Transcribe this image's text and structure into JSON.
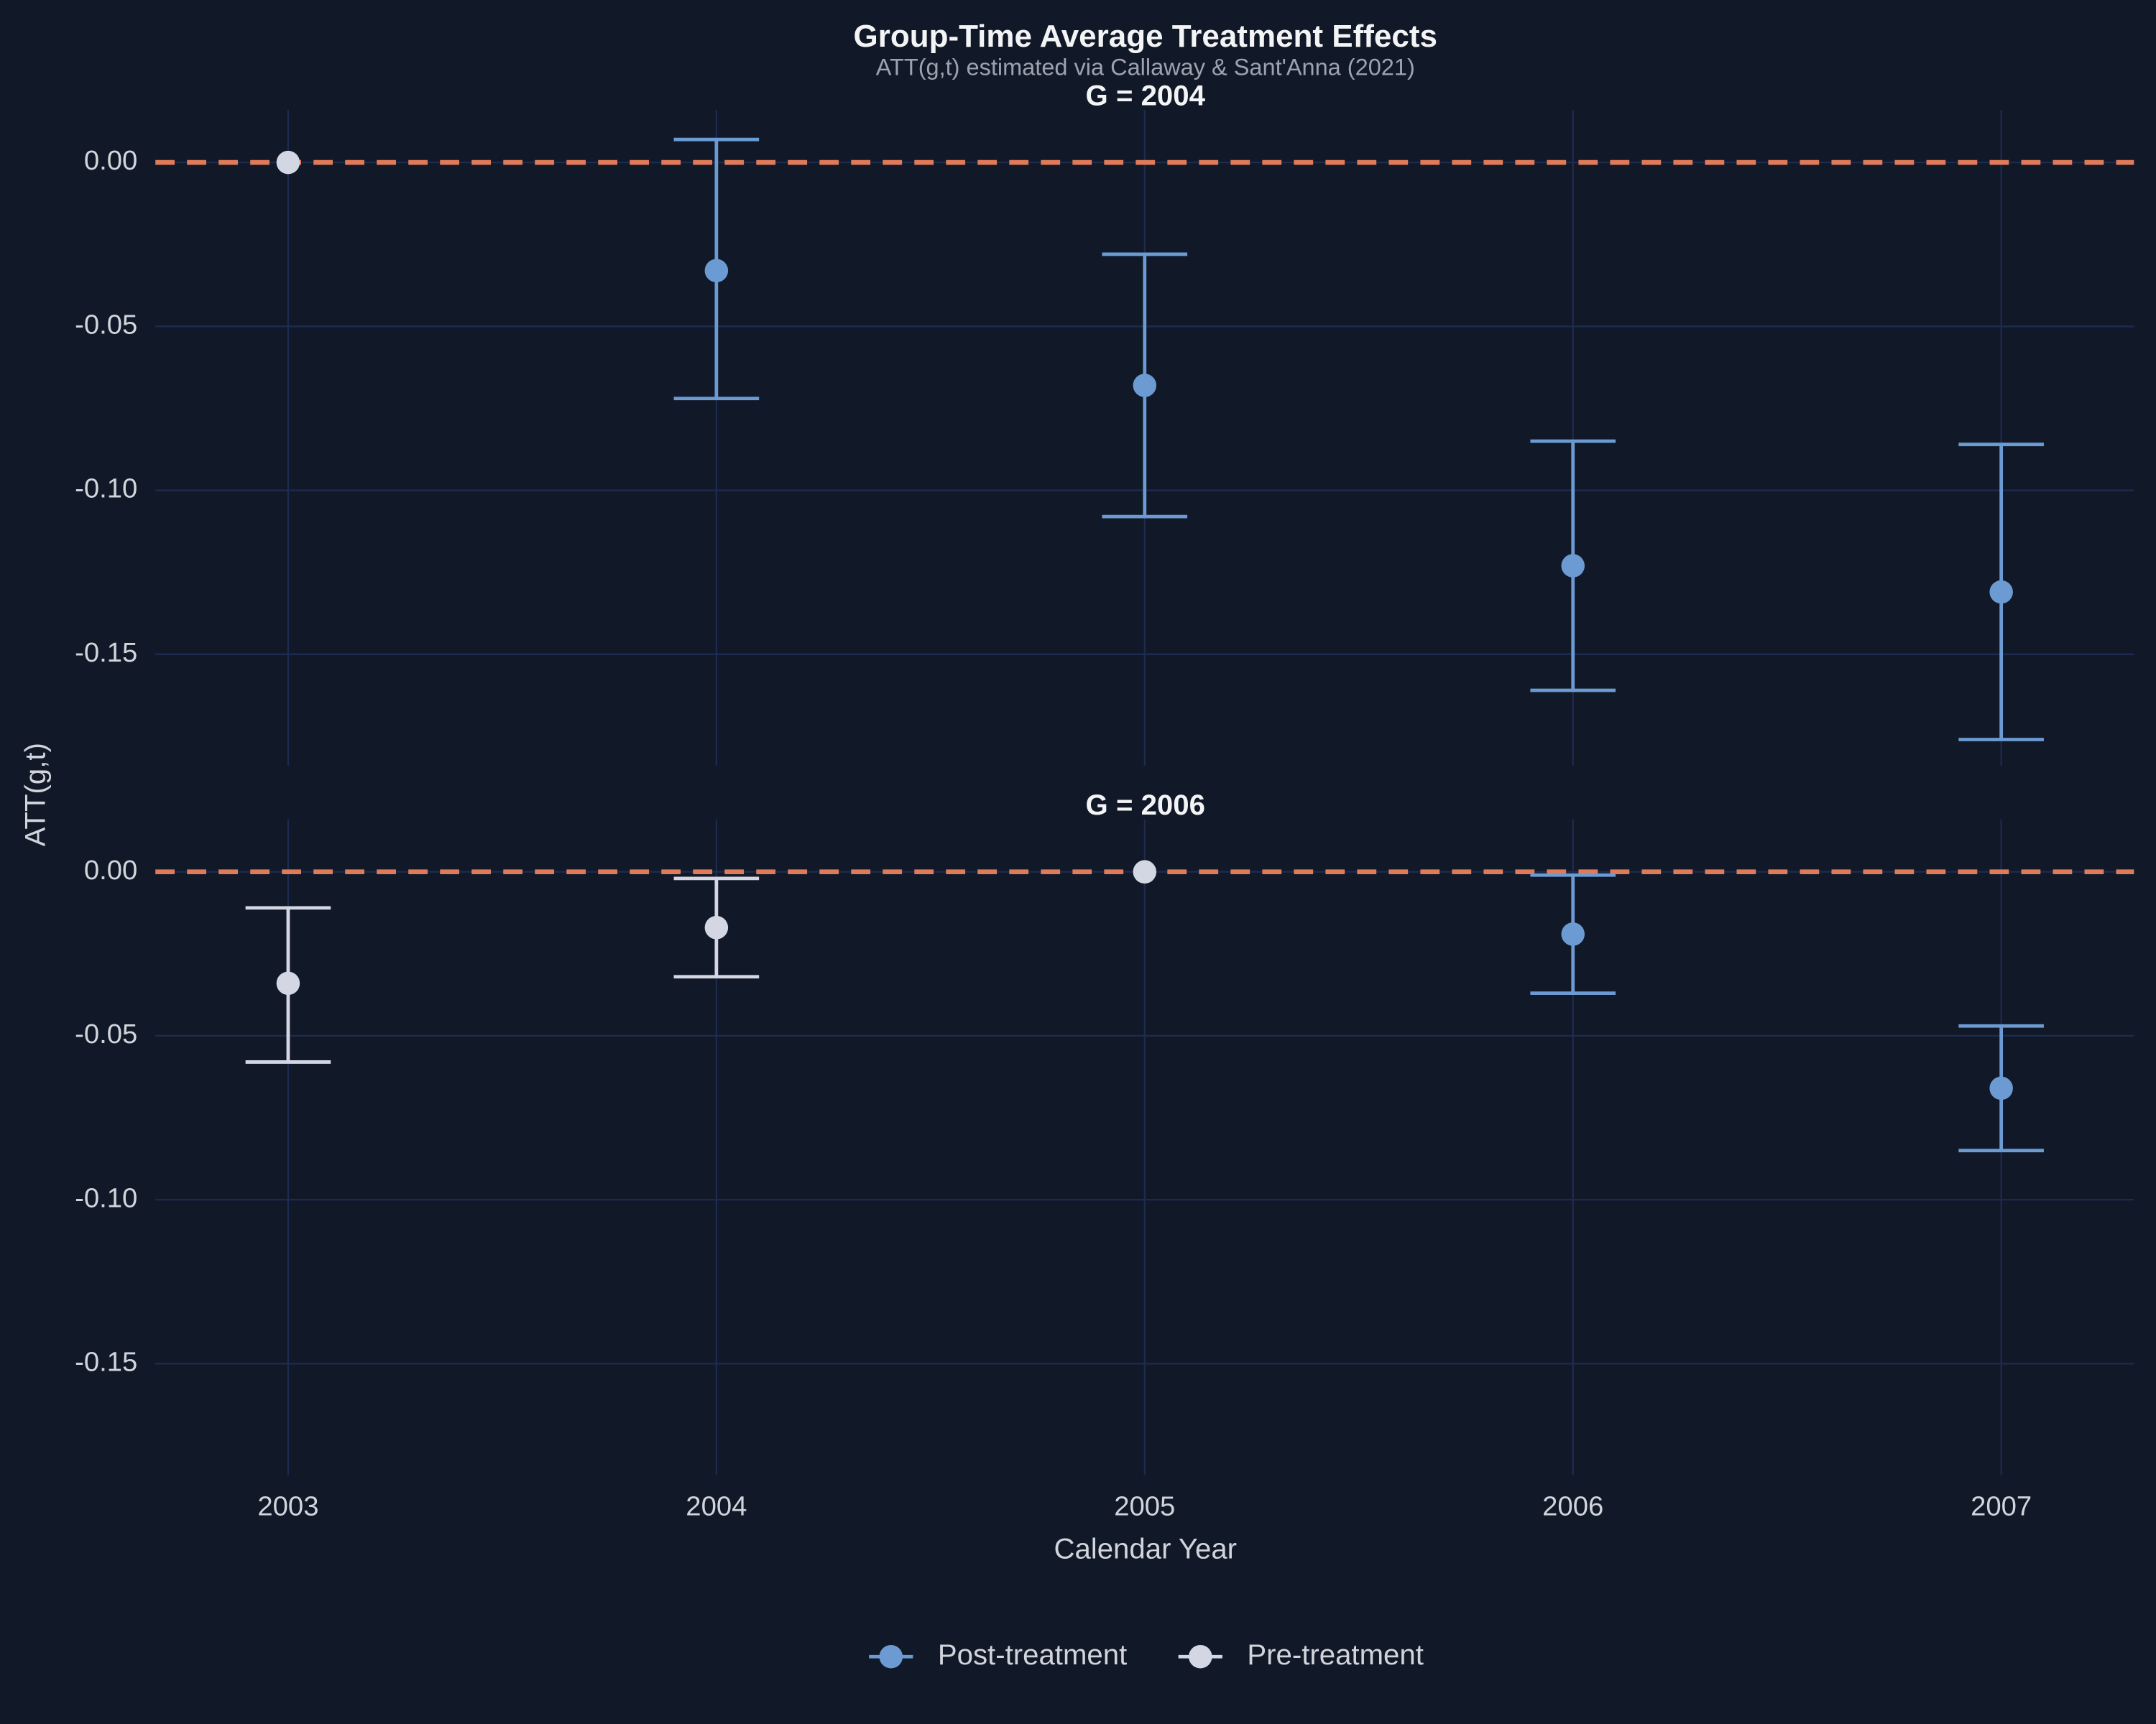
{
  "chart_data": {
    "type": "errorbar",
    "title": "Group-Time Average Treatment Effects",
    "subtitle": "ATT(g,t) estimated via Callaway & Sant'Anna (2021)",
    "x_label": "Calendar Year",
    "y_label": "ATT(g,t)",
    "x": [
      2003,
      2004,
      2005,
      2006,
      2007
    ],
    "xlim": [
      2002.69,
      2007.31
    ],
    "xticks": [
      2003,
      2004,
      2005,
      2006,
      2007
    ],
    "ylim": [
      -0.184,
      0.016
    ],
    "yticks": [
      {
        "value": 0,
        "label": "0.00"
      },
      {
        "value": -0.05,
        "label": "-0.05"
      },
      {
        "value": -0.1,
        "label": "-0.10"
      },
      {
        "value": -0.15,
        "label": "-0.15"
      }
    ],
    "reference_line": 0,
    "reference_color": "#e07b5a",
    "grid": true,
    "legend": "bottom",
    "series": [
      {
        "name": "Post-treatment",
        "color": "#6b9bd2"
      },
      {
        "name": "Pre-treatment",
        "color": "#d3d7e3"
      }
    ],
    "facets": [
      {
        "title": "G = 2004",
        "series": [
          {
            "values": [
              null,
              -0.033,
              -0.068,
              -0.123,
              -0.131
            ],
            "lower": [
              null,
              -0.072,
              -0.108,
              -0.161,
              -0.176
            ],
            "upper": [
              null,
              0.007,
              -0.028,
              -0.085,
              -0.086
            ]
          },
          {
            "values": [
              0,
              null,
              null,
              null,
              null
            ],
            "lower": [
              null,
              null,
              null,
              null,
              null
            ],
            "upper": [
              null,
              null,
              null,
              null,
              null
            ]
          }
        ]
      },
      {
        "title": "G = 2006",
        "series": [
          {
            "values": [
              null,
              null,
              null,
              -0.019,
              -0.066
            ],
            "lower": [
              null,
              null,
              null,
              -0.037,
              -0.085
            ],
            "upper": [
              null,
              null,
              null,
              -0.001,
              -0.047
            ]
          },
          {
            "values": [
              -0.034,
              -0.017,
              0,
              null,
              null
            ],
            "lower": [
              -0.058,
              -0.032,
              null,
              null,
              null
            ],
            "upper": [
              -0.011,
              -0.002,
              null,
              null,
              null
            ]
          }
        ]
      }
    ]
  }
}
